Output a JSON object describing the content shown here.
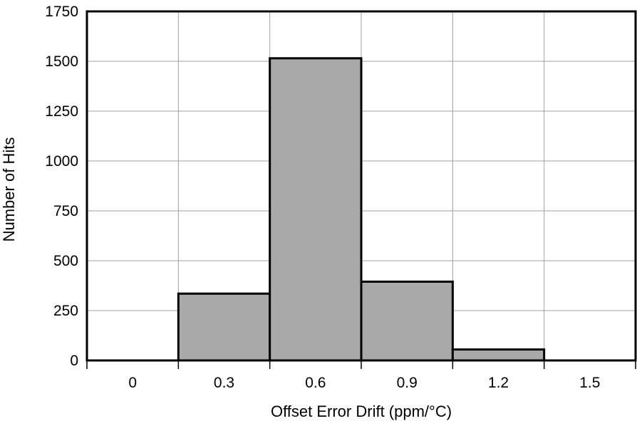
{
  "chart_data": {
    "type": "bar",
    "title": "",
    "xlabel": "Offset Error Drift (ppm/°C)",
    "ylabel": "Number of Hits",
    "categories": [
      "0",
      "0.3",
      "0.6",
      "0.9",
      "1.2",
      "1.5"
    ],
    "values": [
      0,
      335,
      1515,
      395,
      55,
      0
    ],
    "yticks": [
      "0",
      "250",
      "500",
      "750",
      "1000",
      "1250",
      "1500",
      "1750"
    ],
    "ylim": [
      0,
      1750
    ],
    "grid": true,
    "bar_color": "#a9a9a9",
    "edge_color": "#000000",
    "grid_color": "#a0a0a0"
  }
}
